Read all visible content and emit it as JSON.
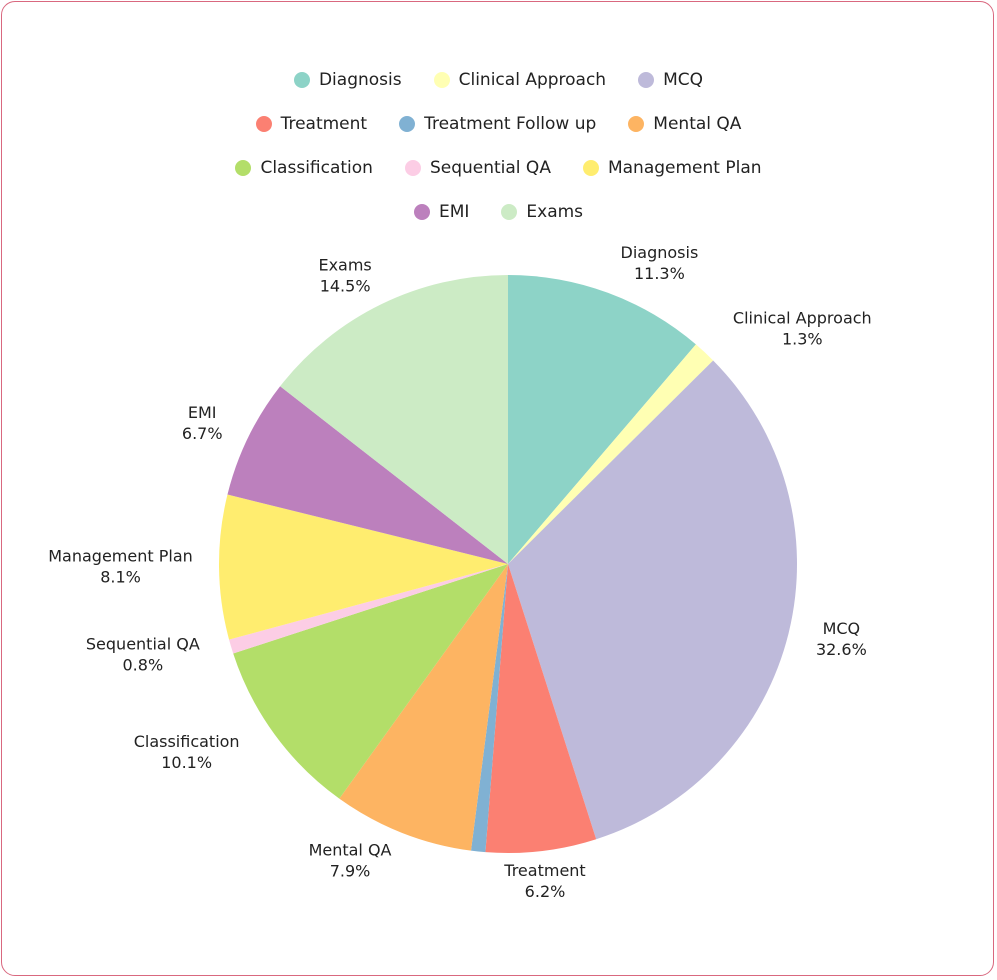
{
  "chart_data": {
    "type": "pie",
    "legend_position": "top",
    "categories": [
      "Diagnosis",
      "Clinical Approach",
      "MCQ",
      "Treatment",
      "Treatment Follow up",
      "Mental QA",
      "Classification",
      "Sequential QA",
      "Management Plan",
      "EMI",
      "Exams"
    ],
    "values": [
      11.3,
      1.3,
      32.6,
      6.2,
      0.8,
      7.9,
      10.1,
      0.8,
      8.1,
      6.7,
      14.5
    ],
    "percent_labels": [
      "11.3%",
      "1.3%",
      "32.6%",
      "6.2%",
      "",
      "7.9%",
      "10.1%",
      "0.8%",
      "8.1%",
      "6.7%",
      "14.5%"
    ],
    "colors": [
      "#8dd3c7",
      "#ffffb3",
      "#bebada",
      "#fb8072",
      "#80b1d3",
      "#fdb462",
      "#b3de69",
      "#fccde5",
      "#ffed6f",
      "#bc80bd",
      "#ccebc5"
    ]
  },
  "legend": {
    "rows": [
      [
        0,
        1,
        2
      ],
      [
        3,
        4,
        5
      ],
      [
        6,
        7,
        8
      ],
      [
        9,
        10
      ]
    ]
  }
}
